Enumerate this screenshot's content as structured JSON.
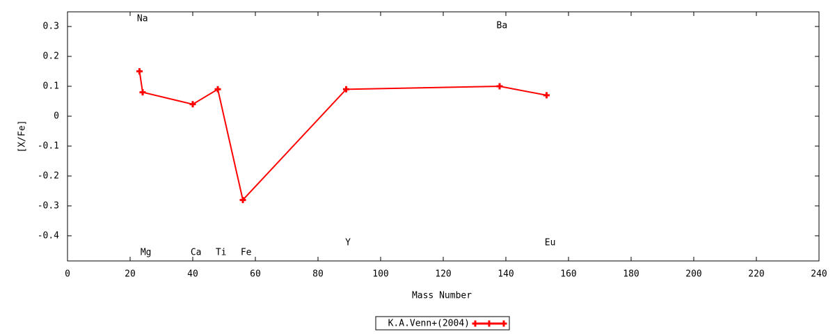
{
  "chart_data": {
    "type": "line",
    "xlabel": "Mass Number",
    "ylabel": "[X/Fe]",
    "x": [
      23,
      24,
      40,
      48,
      56,
      89,
      138,
      153
    ],
    "series": [
      {
        "name": "K.A.Venn+(2004)",
        "color": "#ff0000",
        "values": [
          0.15,
          0.08,
          0.04,
          0.09,
          -0.28,
          0.09,
          0.1,
          0.07
        ]
      }
    ],
    "annotations": [
      {
        "text": "Na",
        "x": 22.2,
        "y": 0.326
      },
      {
        "text": "Mg",
        "x": 23.3,
        "y": -0.456
      },
      {
        "text": "Ca",
        "x": 39.3,
        "y": -0.456
      },
      {
        "text": "Ti",
        "x": 47.3,
        "y": -0.456
      },
      {
        "text": "Fe",
        "x": 55.3,
        "y": -0.456
      },
      {
        "text": "Y",
        "x": 88.7,
        "y": -0.423
      },
      {
        "text": "Ba",
        "x": 137,
        "y": 0.302
      },
      {
        "text": "Eu",
        "x": 152.4,
        "y": -0.423
      }
    ],
    "xlim": [
      0,
      240
    ],
    "xticks": [
      0,
      20,
      40,
      60,
      80,
      100,
      120,
      140,
      160,
      180,
      200,
      220,
      240
    ],
    "ylim": [
      -0.484,
      0.349
    ],
    "yticks": [
      -0.4,
      -0.3,
      -0.2,
      -0.1,
      0,
      0.1,
      0.2,
      0.3
    ],
    "grid": false,
    "legend": "bottom"
  }
}
